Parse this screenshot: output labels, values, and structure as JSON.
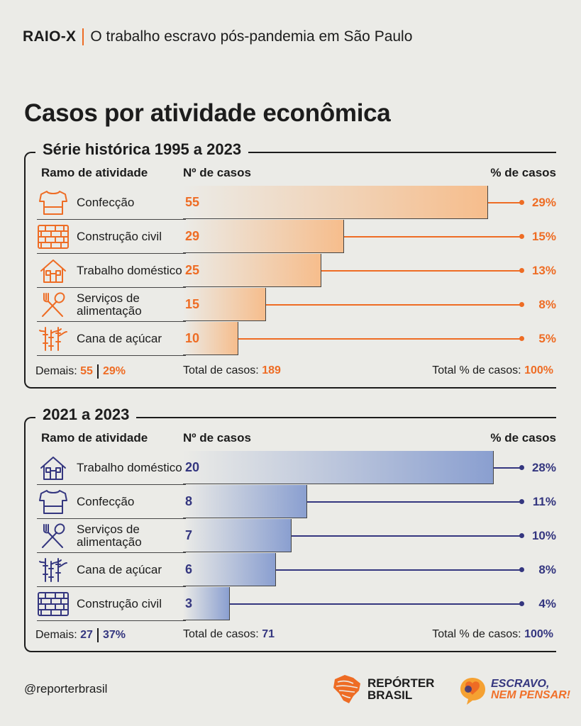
{
  "header": {
    "tag": "RAIO-X",
    "title": "O trabalho escravo pós-pandemia em São Paulo"
  },
  "main_title": "Casos por atividade econômica",
  "colors": {
    "orange": "#ee6c24",
    "orange_bar": "#f6bd8c",
    "blue": "#34367f",
    "blue_bar": "#8a9fd0",
    "background": "#ebebe7"
  },
  "chart_data": [
    {
      "type": "bar",
      "title": "Série histórica 1995 a 2023",
      "col_headers": {
        "activity": "Ramo de atividade",
        "count": "Nº de casos",
        "pct": "% de casos"
      },
      "categories": [
        "Confecção",
        "Construção civil",
        "Trabalho doméstico",
        "Serviços de alimentação",
        "Cana de açúcar"
      ],
      "values": [
        55,
        29,
        25,
        15,
        10
      ],
      "percent_labels": [
        "29%",
        "15%",
        "13%",
        "8%",
        "5%"
      ],
      "icons": [
        "shirt-icon",
        "bricks-icon",
        "house-icon",
        "cutlery-icon",
        "sugarcane-icon"
      ],
      "footer": {
        "others_label": "Demais:",
        "others_count": "55",
        "others_pct": "29%",
        "total_label": "Total de casos:",
        "total_value": "189",
        "total_pct_label": "Total % de casos:",
        "total_pct_value": "100%"
      }
    },
    {
      "type": "bar",
      "title": "2021 a 2023",
      "col_headers": {
        "activity": "Ramo de atividade",
        "count": "Nº de casos",
        "pct": "% de casos"
      },
      "categories": [
        "Trabalho doméstico",
        "Confecção",
        "Serviços de alimentação",
        "Cana de açúcar",
        "Construção civil"
      ],
      "values": [
        20,
        8,
        7,
        6,
        3
      ],
      "percent_labels": [
        "28%",
        "11%",
        "10%",
        "8%",
        "4%"
      ],
      "icons": [
        "house-icon",
        "shirt-icon",
        "cutlery-icon",
        "sugarcane-icon",
        "bricks-icon"
      ],
      "footer": {
        "others_label": "Demais:",
        "others_count": "27",
        "others_pct": "37%",
        "total_label": "Total de casos:",
        "total_value": "71",
        "total_pct_label": "Total % de casos:",
        "total_pct_value": "100%"
      }
    }
  ],
  "footer": {
    "handle": "@reporterbrasil",
    "logo1": [
      "REPÓRTER",
      "BRASIL"
    ],
    "logo2": [
      "ESCRAVO,",
      "NEM PENSAR!"
    ]
  }
}
